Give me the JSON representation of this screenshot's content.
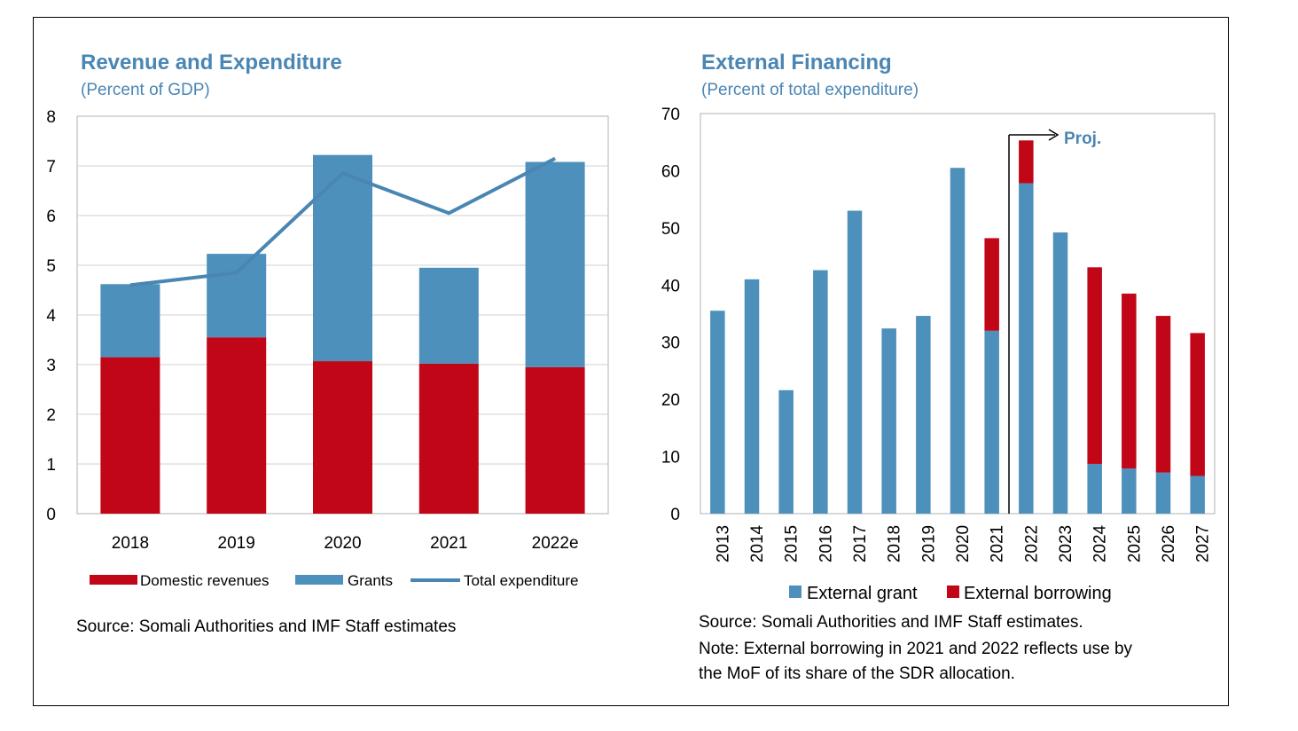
{
  "colors": {
    "domestic": "#c00617",
    "grant": "#4d90bc",
    "line": "#4a86b3",
    "title": "#4a86b3"
  },
  "chart_data": [
    {
      "type": "bar",
      "title": "Revenue and Expenditure",
      "subtitle": "(Percent of GDP)",
      "categories": [
        "2018",
        "2019",
        "2020",
        "2021",
        "2022e"
      ],
      "series": [
        {
          "name": "Domestic revenues",
          "kind": "bar",
          "values": [
            3.15,
            3.55,
            3.07,
            3.02,
            2.95
          ]
        },
        {
          "name": "Grants",
          "kind": "bar",
          "values": [
            1.47,
            1.68,
            4.15,
            1.93,
            4.13
          ]
        },
        {
          "name": "Total expenditure",
          "kind": "line",
          "values": [
            4.6,
            4.85,
            6.85,
            6.05,
            7.15
          ]
        }
      ],
      "ylim": [
        0,
        8
      ],
      "yticks": [
        "0",
        "1",
        "2",
        "3",
        "4",
        "5",
        "6",
        "7",
        "8"
      ],
      "stacked": true,
      "legend": "bottom",
      "source": "Source: Somali Authorities and IMF Staff estimates"
    },
    {
      "type": "bar",
      "title": "External Financing",
      "subtitle": "(Percent of total expenditure)",
      "categories": [
        "2013",
        "2014",
        "2015",
        "2016",
        "2017",
        "2018",
        "2019",
        "2020",
        "2021",
        "2022",
        "2023",
        "2024",
        "2025",
        "2026",
        "2027"
      ],
      "series": [
        {
          "name": "External grant",
          "values": [
            35.5,
            41,
            21.6,
            42.6,
            53,
            32.4,
            34.6,
            60.5,
            32,
            57.8,
            49.2,
            8.7,
            7.9,
            7.2,
            6.6
          ]
        },
        {
          "name": "External borrowing",
          "values": [
            0,
            0,
            0,
            0,
            0,
            0,
            0,
            0,
            16.2,
            7.5,
            0,
            34.4,
            30.6,
            27.4,
            25
          ]
        }
      ],
      "ylim": [
        0,
        70
      ],
      "yticks": [
        "0",
        "10",
        "20",
        "30",
        "40",
        "50",
        "60",
        "70"
      ],
      "stacked": true,
      "projection_label": "Proj.",
      "legend": "bottom",
      "source": "Source: Somali Authorities and IMF Staff estimates.",
      "note_line1": "Note: External borrowing in 2021 and 2022 reflects use by",
      "note_line2": "the MoF of its share of the SDR allocation."
    }
  ]
}
